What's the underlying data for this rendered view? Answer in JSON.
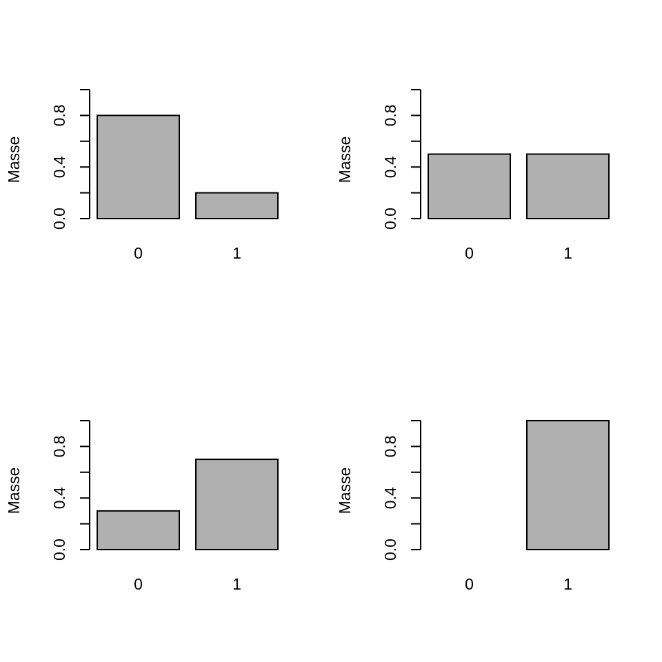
{
  "chart_data": [
    {
      "type": "bar",
      "categories": [
        "0",
        "1"
      ],
      "values": [
        0.8,
        0.2
      ],
      "ylabel": "Masse",
      "ylim": [
        0,
        1
      ],
      "yticks": [
        0.0,
        0.2,
        0.4,
        0.6,
        0.8,
        1.0
      ],
      "ytick_labels": [
        "0.0",
        "0.4",
        "0.8"
      ],
      "grid": false,
      "bar_color": "#b0b0b0"
    },
    {
      "type": "bar",
      "categories": [
        "0",
        "1"
      ],
      "values": [
        0.5,
        0.5
      ],
      "ylabel": "Masse",
      "ylim": [
        0,
        1
      ],
      "yticks": [
        0.0,
        0.2,
        0.4,
        0.6,
        0.8,
        1.0
      ],
      "ytick_labels": [
        "0.0",
        "0.4",
        "0.8"
      ],
      "grid": false,
      "bar_color": "#b0b0b0"
    },
    {
      "type": "bar",
      "categories": [
        "0",
        "1"
      ],
      "values": [
        0.3,
        0.7
      ],
      "ylabel": "Masse",
      "ylim": [
        0,
        1
      ],
      "yticks": [
        0.0,
        0.2,
        0.4,
        0.6,
        0.8,
        1.0
      ],
      "ytick_labels": [
        "0.0",
        "0.4",
        "0.8"
      ],
      "grid": false,
      "bar_color": "#b0b0b0"
    },
    {
      "type": "bar",
      "categories": [
        "0",
        "1"
      ],
      "values": [
        0.0,
        1.0
      ],
      "ylabel": "Masse",
      "ylim": [
        0,
        1
      ],
      "yticks": [
        0.0,
        0.2,
        0.4,
        0.6,
        0.8,
        1.0
      ],
      "ytick_labels": [
        "0.0",
        "0.4",
        "0.8"
      ],
      "grid": false,
      "bar_color": "#b0b0b0"
    }
  ]
}
